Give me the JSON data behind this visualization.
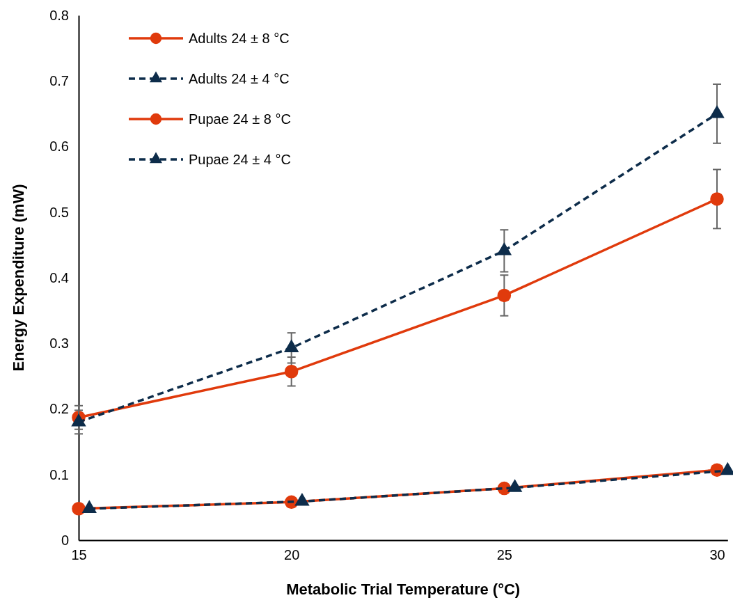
{
  "chart_data": {
    "type": "line",
    "xlabel": "Metabolic Trial Temperature (°C)",
    "ylabel": "Energy Expenditure (mW)",
    "x": [
      15,
      20,
      25,
      30
    ],
    "xlim": [
      15,
      30.25
    ],
    "xticks": [
      15,
      20,
      25,
      30
    ],
    "ylim": [
      0,
      0.8
    ],
    "yticks": [
      0,
      0.1,
      0.2,
      0.3,
      0.4,
      0.5,
      0.6,
      0.7,
      0.8
    ],
    "grid": false,
    "legend": "top left",
    "series": [
      {
        "name": "Adults 24 ± 8 °C",
        "color": "#e03a0c",
        "values": [
          0.187,
          0.257,
          0.373,
          0.52
        ],
        "errors": [
          0.018,
          0.022,
          0.031,
          0.045
        ],
        "marker": "circle",
        "line_style": "solid"
      },
      {
        "name": "Adults 24 ± 4 °C",
        "color": "#0d2c4a",
        "values": [
          0.18,
          0.293,
          0.441,
          0.65
        ],
        "errors": [
          0.018,
          0.023,
          0.032,
          0.045
        ],
        "marker": "triangle",
        "line_style": "dashed"
      },
      {
        "name": "Pupae 24 ± 8 °C",
        "color": "#e03a0c",
        "values": [
          0.048,
          0.058,
          0.079,
          0.107
        ],
        "marker": "circle",
        "line_style": "solid"
      },
      {
        "name": "Pupae 24 ± 4 °C",
        "color": "#0d2c4a",
        "x": [
          15.25,
          20.25,
          25.25,
          30.25
        ],
        "values": [
          0.048,
          0.059,
          0.08,
          0.106
        ],
        "marker": "triangle",
        "line_style": "dashed"
      }
    ]
  }
}
